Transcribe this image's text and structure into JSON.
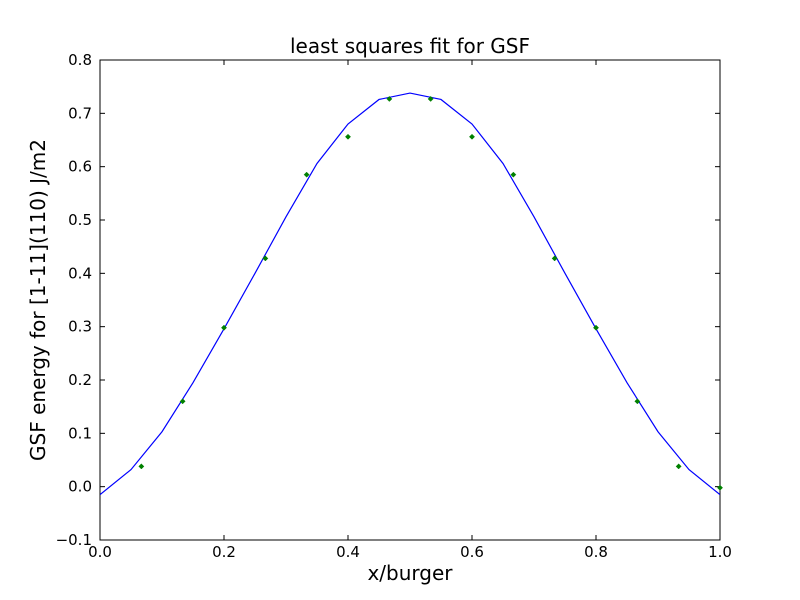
{
  "chart_data": {
    "type": "line",
    "title": "least squares fit for GSF",
    "xlabel": "x/burger",
    "ylabel": "GSF energy for [1-11](110) J/m2",
    "xlim": [
      0.0,
      1.0
    ],
    "ylim": [
      -0.1,
      0.8
    ],
    "xticks": [
      "0.0",
      "0.2",
      "0.4",
      "0.6",
      "0.8",
      "1.0"
    ],
    "yticks": [
      "−0.1",
      "0.0",
      "0.1",
      "0.2",
      "0.3",
      "0.4",
      "0.5",
      "0.6",
      "0.7",
      "0.8"
    ],
    "grid": false,
    "legend": "none",
    "series": [
      {
        "kind": "points",
        "color": "#008000",
        "x": [
          0.0667,
          0.1333,
          0.2,
          0.2667,
          0.3333,
          0.4,
          0.4667,
          0.5333,
          0.6,
          0.6667,
          0.7333,
          0.8,
          0.8667,
          0.9333,
          1.0
        ],
        "y": [
          0.038,
          0.16,
          0.298,
          0.428,
          0.585,
          0.656,
          0.727,
          0.727,
          0.656,
          0.585,
          0.428,
          0.298,
          0.16,
          0.038,
          -0.002
        ]
      },
      {
        "kind": "line",
        "color": "#0000ff",
        "x": [
          0.0,
          0.05,
          0.1,
          0.15,
          0.2,
          0.25,
          0.3,
          0.35,
          0.4,
          0.45,
          0.5,
          0.55,
          0.6,
          0.65,
          0.7,
          0.75,
          0.8,
          0.85,
          0.9,
          0.95,
          1.0
        ],
        "y": [
          -0.015,
          0.032,
          0.103,
          0.195,
          0.296,
          0.4,
          0.506,
          0.606,
          0.68,
          0.726,
          0.738,
          0.726,
          0.68,
          0.606,
          0.506,
          0.4,
          0.296,
          0.195,
          0.103,
          0.032,
          -0.015
        ]
      }
    ]
  }
}
